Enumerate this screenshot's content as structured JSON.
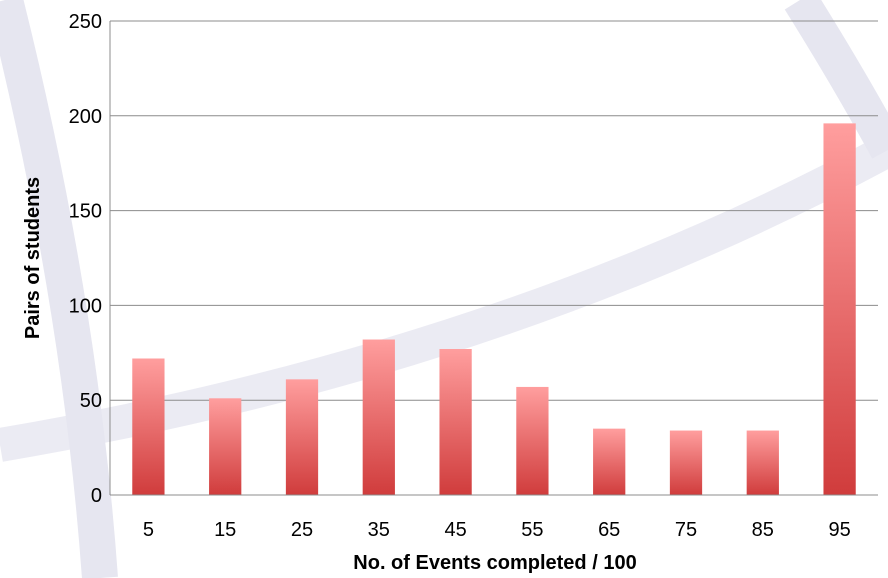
{
  "chart_data": {
    "type": "bar",
    "title": "",
    "xlabel": "No. of Events completed / 100",
    "ylabel": "Pairs of students",
    "categories": [
      "5",
      "15",
      "25",
      "35",
      "45",
      "55",
      "65",
      "75",
      "85",
      "95"
    ],
    "values": [
      72,
      51,
      61,
      82,
      77,
      57,
      35,
      34,
      34,
      196
    ],
    "ylim": [
      0,
      250
    ],
    "yticks": [
      0,
      50,
      100,
      150,
      200,
      250
    ],
    "grid": true,
    "legend": "none"
  },
  "colors": {
    "bar_top": "#ff9e9e",
    "bar_bottom": "#d03c3c",
    "gridline": "#8c8c8c",
    "axis_line": "#8c8c8c",
    "background_arc": "#e6e6f0"
  }
}
